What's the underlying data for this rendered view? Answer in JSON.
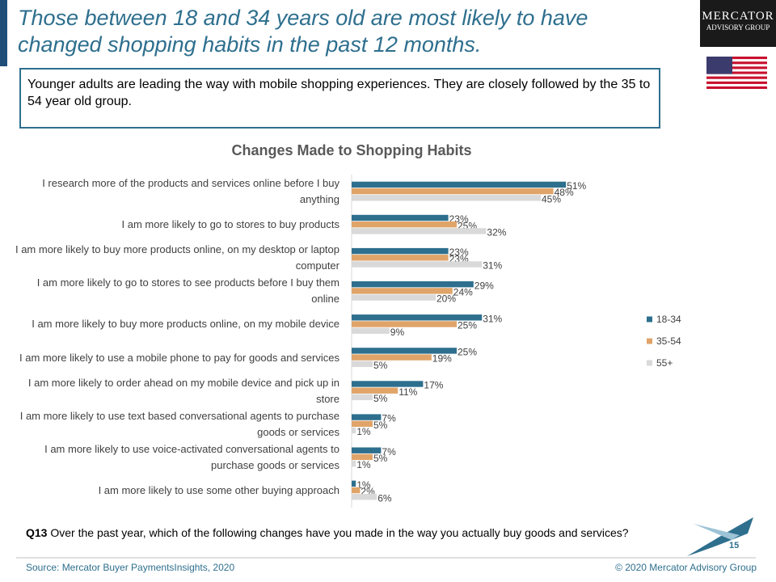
{
  "header": {
    "title": "Those between 18 and 34 years old are most likely to have changed shopping habits in the past 12 months.",
    "logo_line1": "Mercator",
    "logo_line2": "Advisory Group"
  },
  "callout": "Younger adults are leading the way with mobile shopping experiences. They are closely followed by the 35 to 54 year old group.",
  "chart_data": {
    "type": "bar",
    "orientation": "horizontal",
    "title": "Changes Made to Shopping Habits",
    "categories": [
      "I research more of the products and services online before I buy anything",
      "I am more likely to go to stores to buy products",
      "I am more likely to buy more products online, on my desktop or laptop computer",
      "I am more likely to go to stores to see products before I buy them online",
      "I am more likely to buy more products online, on my mobile device",
      "I am more likely to use a mobile phone to pay for goods and services",
      "I am more likely to order ahead on my mobile device and pick up in store",
      "I am more likely to use text based conversational agents to purchase goods or services",
      "I am more likely to use voice-activated conversational agents to purchase goods or services",
      "I am more likely to use some other buying approach"
    ],
    "series": [
      {
        "name": "18-34",
        "color": "#2e6f8e",
        "values": [
          51,
          23,
          23,
          29,
          31,
          25,
          17,
          7,
          7,
          1
        ],
        "value_labels": [
          "51%",
          "23%",
          "23%",
          "29%",
          "31%",
          "25%",
          "17%",
          "7%",
          "7%",
          "1%"
        ]
      },
      {
        "name": "35-54",
        "color": "#e0a469",
        "values": [
          48,
          25,
          23,
          24,
          25,
          19,
          11,
          5,
          5,
          2
        ],
        "value_labels": [
          "48%",
          "25%",
          "23%",
          "24%",
          "25%",
          "19%",
          "11%",
          "5%",
          "5%",
          "2%"
        ]
      },
      {
        "name": "55+",
        "color": "#d9d9d9",
        "values": [
          45,
          32,
          31,
          20,
          9,
          5,
          5,
          1,
          1,
          6
        ],
        "value_labels": [
          "45%",
          "32%",
          "31%",
          "20%",
          "9%",
          "5%",
          "5%",
          "1%",
          "1%",
          "6%"
        ]
      }
    ],
    "xlim": [
      0,
      100
    ],
    "legend": "right"
  },
  "footer": {
    "question_label": "Q13",
    "question": "Over the past year, which of the following changes have you made in the way you actually buy goods and services?",
    "source": "Source: Mercator Buyer PaymentsInsights, 2020",
    "copyright": "© 2020  Mercator Advisory Group",
    "page": "15"
  }
}
